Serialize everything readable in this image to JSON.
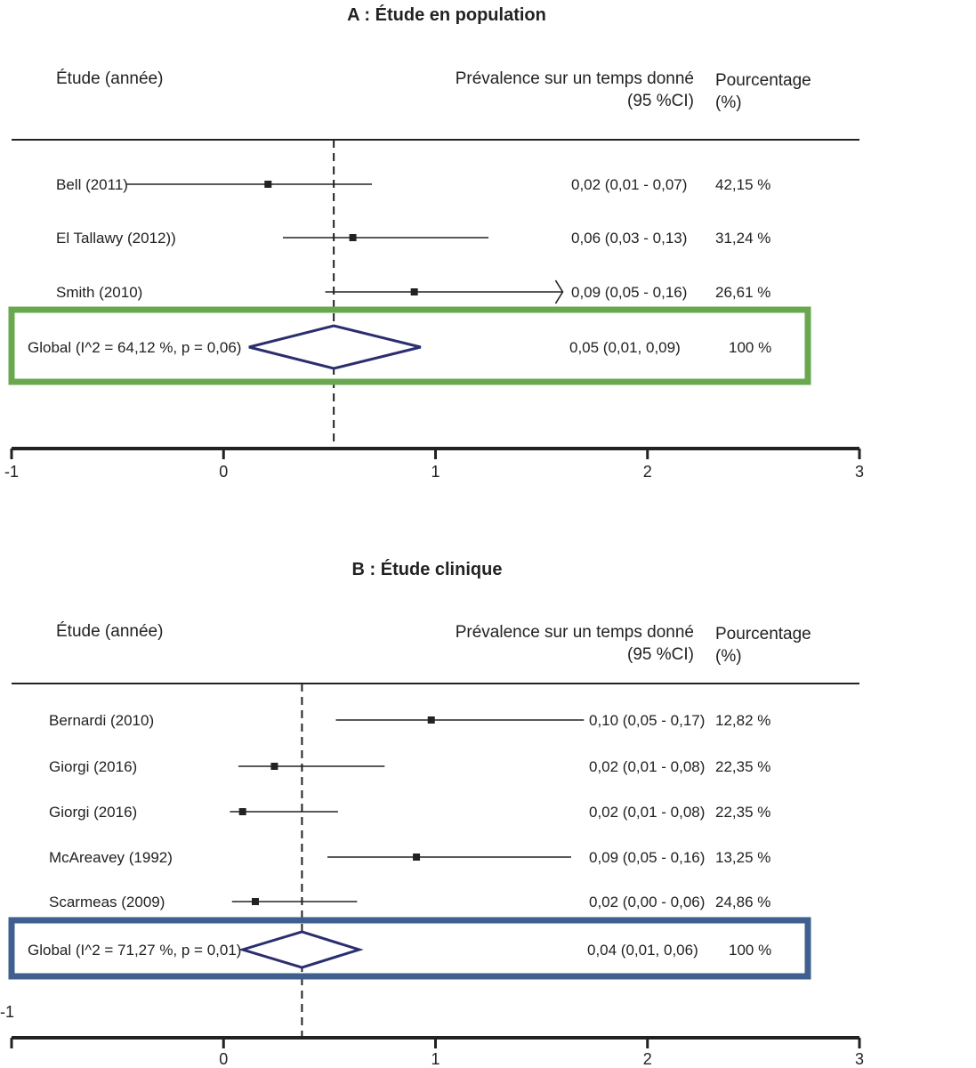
{
  "chart_data": [
    {
      "type": "forest",
      "title": "A : Étude en population",
      "headers": {
        "study": "Étude (année)",
        "prevalence_line1": "Prévalence sur un temps donné",
        "prevalence_line2": "(95 %CI)",
        "percent_line1": "Pourcentage",
        "percent_line2": "(%)"
      },
      "xlim": [
        -1,
        3
      ],
      "ticks": [
        "-1",
        "0",
        "1",
        "2",
        "3"
      ],
      "reference_line": 0.52,
      "studies": [
        {
          "label": "Bell (2011)",
          "estimate": 0.21,
          "lower": -0.46,
          "upper": 0.7,
          "ci_text": "0,02 (0,01 - 0,07)",
          "weight_text": "42,15 %"
        },
        {
          "label": "El Tallawy (2012))",
          "estimate": 0.61,
          "lower": 0.28,
          "upper": 1.25,
          "ci_text": "0,06 (0,03 - 0,13)",
          "weight_text": "31,24 %"
        },
        {
          "label": "Smith  (2010)",
          "estimate": 0.9,
          "lower": 0.48,
          "upper": 1.6,
          "arrow": true,
          "ci_text": "0,09 (0,05 - 0,16)",
          "weight_text": "26,61 %"
        }
      ],
      "overall": {
        "label": "Global (I^2 = 64,12 %, p = 0,06)",
        "estimate": 0.52,
        "lower": 0.12,
        "upper": 0.93,
        "ci_text": "0,05 (0,01, 0,09)",
        "weight_text": "100 %"
      },
      "highlight_color": "#6aa84f"
    },
    {
      "type": "forest",
      "title": "B : Étude clinique",
      "headers": {
        "study": "Étude (année)",
        "prevalence_line1": "Prévalence sur un temps donné",
        "prevalence_line2": "(95 %CI)",
        "percent_line1": "Pourcentage",
        "percent_line2": "(%)"
      },
      "xlim": [
        -1,
        3
      ],
      "ticks": [
        "-1",
        "0",
        "1",
        "2",
        "3"
      ],
      "reference_line": 0.37,
      "studies": [
        {
          "label": "Bernardi (2010)",
          "estimate": 0.98,
          "lower": 0.53,
          "upper": 1.7,
          "ci_text": "0,10 (0,05 - 0,17)",
          "weight_text": "12,82 %"
        },
        {
          "label": "Giorgi (2016)",
          "estimate": 0.24,
          "lower": 0.07,
          "upper": 0.76,
          "ci_text": "0,02 (0,01 - 0,08)",
          "weight_text": "22,35 %"
        },
        {
          "label": "Giorgi (2016)",
          "estimate": 0.09,
          "lower": 0.03,
          "upper": 0.54,
          "ci_text": "0,02 (0,01 - 0,08)",
          "weight_text": "22,35 %"
        },
        {
          "label": "McAreavey (1992)",
          "estimate": 0.91,
          "lower": 0.49,
          "upper": 1.64,
          "ci_text": "0,09 (0,05 - 0,16)",
          "weight_text": "13,25 %"
        },
        {
          "label": "Scarmeas (2009)",
          "estimate": 0.15,
          "lower": 0.04,
          "upper": 0.63,
          "ci_text": "0,02 (0,00 - 0,06)",
          "weight_text": "24,86 %"
        }
      ],
      "overall": {
        "label": "Global (I^2 = 71,27 %, p = 0,01)",
        "estimate": 0.37,
        "lower": 0.09,
        "upper": 0.64,
        "ci_text": "0,04 (0,01, 0,06)",
        "weight_text": "100 %"
      },
      "highlight_color": "#3f5f8f"
    }
  ]
}
